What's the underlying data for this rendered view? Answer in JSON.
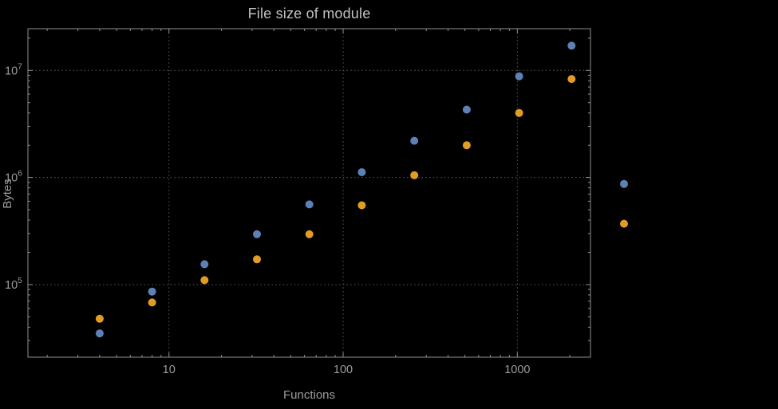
{
  "chart_data": {
    "type": "scatter",
    "title": "File size of module",
    "xlabel": "Functions",
    "ylabel": "Bytes",
    "xscale": "log",
    "yscale": "log",
    "xlim": [
      1.55,
      2630
    ],
    "ylim": [
      21000,
      24500000
    ],
    "grid": true,
    "legend": "none",
    "x_ticks": [
      {
        "value": 10,
        "label": "10"
      },
      {
        "value": 100,
        "label": "100"
      },
      {
        "value": 1000,
        "label": "1000"
      }
    ],
    "y_ticks": [
      {
        "value": 100000,
        "base": "10",
        "exp": "5"
      },
      {
        "value": 1000000,
        "base": "10",
        "exp": "6"
      },
      {
        "value": 10000000,
        "base": "10",
        "exp": "7"
      }
    ],
    "series": [
      {
        "name": "blue",
        "color": "#5e81b5",
        "points": [
          [
            4,
            35000
          ],
          [
            8,
            86000
          ],
          [
            16,
            155000
          ],
          [
            32,
            295000
          ],
          [
            64,
            560000
          ],
          [
            128,
            1120000
          ],
          [
            256,
            2200000
          ],
          [
            512,
            4300000
          ],
          [
            1024,
            8800000
          ],
          [
            2048,
            17000000
          ],
          [
            4096,
            870000
          ]
        ]
      },
      {
        "name": "orange",
        "color": "#e19c24",
        "points": [
          [
            4,
            48000
          ],
          [
            8,
            68000
          ],
          [
            16,
            110000
          ],
          [
            32,
            172000
          ],
          [
            64,
            295000
          ],
          [
            128,
            550000
          ],
          [
            256,
            1050000
          ],
          [
            512,
            2000000
          ],
          [
            1024,
            4000000
          ],
          [
            2048,
            8300000
          ],
          [
            4096,
            370000
          ]
        ]
      }
    ],
    "colors": {
      "background": "#000000",
      "frame": "#8f8f8f",
      "grid": "#5a5a5a",
      "text": "#9c9c9c",
      "title": "#c2c2c2"
    }
  }
}
